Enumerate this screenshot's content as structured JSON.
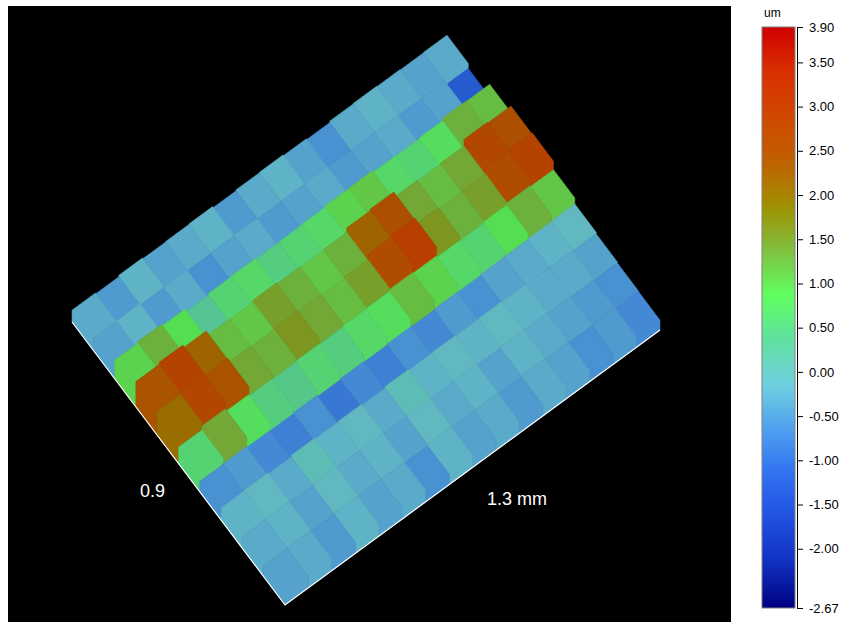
{
  "chart_data": {
    "type": "surface",
    "xlabel": "1.3 mm",
    "ylabel": "0.9",
    "z": [
      [
        -0.4,
        -0.3,
        -0.5,
        -0.2,
        -0.4,
        -0.3,
        -0.6,
        -0.2,
        -0.4,
        -0.3,
        -0.5,
        -0.3,
        -0.4,
        -0.6,
        -0.5,
        -0.7
      ],
      [
        -0.3,
        -0.2,
        -0.4,
        -0.1,
        -0.3,
        -0.2,
        -0.4,
        -0.1,
        -0.3,
        -0.2,
        -0.4,
        -0.2,
        -0.3,
        -0.4,
        -0.5,
        -0.6
      ],
      [
        -0.2,
        -0.1,
        -0.3,
        0.0,
        -0.2,
        -0.1,
        -0.3,
        0.0,
        -0.2,
        -0.1,
        -0.2,
        -0.1,
        -0.2,
        -0.3,
        -0.3,
        -0.4
      ],
      [
        -0.6,
        -0.5,
        -0.7,
        -0.8,
        -0.6,
        -0.9,
        -0.7,
        -0.8,
        -0.6,
        -0.7,
        -0.5,
        -0.6,
        -0.4,
        -0.3,
        -0.2,
        -0.1
      ],
      [
        0.6,
        1.4,
        0.8,
        0.5,
        0.4,
        0.6,
        0.5,
        0.7,
        0.8,
        1.2,
        1.0,
        0.7,
        0.6,
        0.9,
        1.3,
        1.1
      ],
      [
        2.1,
        2.7,
        2.4,
        1.4,
        1.3,
        1.6,
        1.4,
        1.2,
        1.5,
        2.6,
        2.9,
        1.6,
        1.3,
        1.5,
        2.6,
        2.8
      ],
      [
        2.4,
        2.8,
        2.2,
        1.2,
        1.1,
        1.5,
        1.3,
        1.1,
        1.3,
        2.2,
        2.5,
        1.4,
        1.2,
        1.4,
        2.7,
        2.5
      ],
      [
        1.0,
        1.3,
        0.9,
        0.3,
        0.6,
        0.7,
        0.5,
        0.6,
        0.7,
        1.0,
        1.1,
        0.7,
        0.6,
        0.8,
        1.3,
        1.2
      ],
      [
        -0.4,
        -0.2,
        -0.5,
        -0.3,
        -0.6,
        -0.4,
        -0.3,
        -0.5,
        -0.4,
        -0.3,
        -0.5,
        -0.4,
        -0.3,
        -0.5,
        -0.4,
        -1.3
      ],
      [
        -0.3,
        -0.5,
        -0.2,
        -0.4,
        -0.3,
        -0.2,
        -0.5,
        -0.3,
        -0.2,
        -0.4,
        -0.6,
        -0.3,
        -0.2,
        -0.3,
        -0.4,
        -0.3
      ]
    ],
    "colorbar": {
      "title": "um",
      "range": [
        -2.67,
        3.9
      ],
      "ticks": [
        {
          "value": 3.9,
          "label": "3.90"
        },
        {
          "value": 3.5,
          "label": "3.50"
        },
        {
          "value": 3,
          "label": "3.00"
        },
        {
          "value": 2.5,
          "label": "2.50"
        },
        {
          "value": 2,
          "label": "2.00"
        },
        {
          "value": 1.5,
          "label": "1.50"
        },
        {
          "value": 1,
          "label": "1.00"
        },
        {
          "value": 0.5,
          "label": "0.50"
        },
        {
          "value": 0,
          "label": "0.00"
        },
        {
          "value": -0.5,
          "label": "-0.50"
        },
        {
          "value": -1,
          "label": "-1.00"
        },
        {
          "value": -1.5,
          "label": "-1.50"
        },
        {
          "value": -2,
          "label": "-2.00"
        },
        {
          "value": -2.67,
          "label": "-2.67"
        }
      ]
    }
  }
}
